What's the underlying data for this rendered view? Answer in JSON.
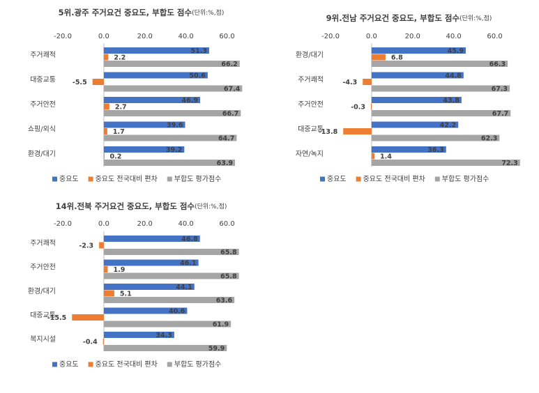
{
  "chart_data": [
    {
      "type": "bar",
      "orientation": "horizontal",
      "title": "5위.광주 주거요건 중요도, 부합도 점수",
      "subtitle": "(단위:%,점)",
      "categories": [
        "주거쾌적",
        "대중교통",
        "주거안전",
        "쇼핑/외식",
        "환경/대기"
      ],
      "series": [
        {
          "name": "중요도",
          "color": "#4472c4",
          "values": [
            51.3,
            50.6,
            46.9,
            39.6,
            39.2
          ]
        },
        {
          "name": "중요도 전국대비 편차",
          "color": "#ed7d31",
          "values": [
            2.2,
            -5.5,
            2.7,
            1.7,
            0.2
          ]
        },
        {
          "name": "부합도 평가점수",
          "color": "#a5a5a5",
          "values": [
            66.2,
            67.4,
            66.7,
            64.7,
            63.9
          ]
        }
      ],
      "xlim": [
        -20,
        70
      ],
      "xticks": [
        {
          "value": -20,
          "label": "-20.0"
        },
        {
          "value": 0,
          "label": "0.0"
        },
        {
          "value": 20,
          "label": "20.0"
        },
        {
          "value": 40,
          "label": "40.0"
        },
        {
          "value": 60,
          "label": "60.0"
        }
      ],
      "legend": "bottom"
    },
    {
      "type": "bar",
      "orientation": "horizontal",
      "title": "9위.전남 주거요건 중요도, 부합도 점수",
      "subtitle": "(단위:%,점)",
      "categories": [
        "환경/대기",
        "주거쾌적",
        "주거안전",
        "대중교통",
        "자연/녹지"
      ],
      "series": [
        {
          "name": "중요도",
          "color": "#4472c4",
          "values": [
            45.9,
            44.8,
            43.8,
            42.2,
            36.3
          ]
        },
        {
          "name": "중요도 전국대비 편차",
          "color": "#ed7d31",
          "values": [
            6.8,
            -4.3,
            -0.3,
            -13.8,
            1.4
          ]
        },
        {
          "name": "부합도 평가점수",
          "color": "#a5a5a5",
          "values": [
            66.3,
            67.3,
            67.7,
            62.3,
            72.3
          ]
        }
      ],
      "xlim": [
        -20,
        70
      ],
      "xticks": [
        {
          "value": -20,
          "label": "-20.0"
        },
        {
          "value": 0,
          "label": "0.0"
        },
        {
          "value": 20,
          "label": "20.0"
        },
        {
          "value": 40,
          "label": "40.0"
        },
        {
          "value": 60,
          "label": "60.0"
        }
      ],
      "legend": "bottom"
    },
    {
      "type": "bar",
      "orientation": "horizontal",
      "title": "14위.전북 주거요건 중요도, 부합도 점수",
      "subtitle": "(단위:%,점)",
      "categories": [
        "주거쾌적",
        "주거안전",
        "환경/대기",
        "대중교통",
        "복지시설"
      ],
      "series": [
        {
          "name": "중요도",
          "color": "#4472c4",
          "values": [
            46.8,
            46.1,
            44.1,
            40.6,
            34.3
          ]
        },
        {
          "name": "중요도 전국대비 편차",
          "color": "#ed7d31",
          "values": [
            -2.3,
            1.9,
            5.1,
            -15.5,
            -0.4
          ]
        },
        {
          "name": "부합도 평가점수",
          "color": "#a5a5a5",
          "values": [
            65.8,
            65.8,
            63.6,
            61.9,
            59.9
          ]
        }
      ],
      "xlim": [
        -20,
        70
      ],
      "xticks": [
        {
          "value": -20,
          "label": "-20.0"
        },
        {
          "value": 0,
          "label": "0.0"
        },
        {
          "value": 20,
          "label": "20.0"
        },
        {
          "value": 40,
          "label": "40.0"
        },
        {
          "value": 60,
          "label": "60.0"
        }
      ],
      "legend": "bottom"
    }
  ]
}
